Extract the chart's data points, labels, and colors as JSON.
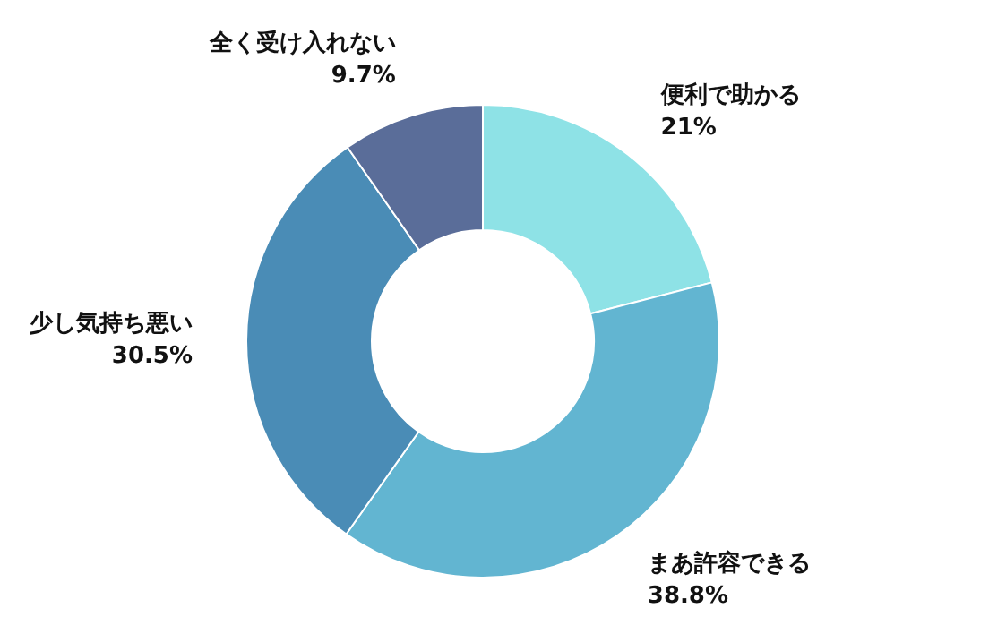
{
  "chart_data": {
    "type": "donut",
    "categories": [
      "便利で助かる",
      "まあ許容できる",
      "少し気持ち悪い",
      "全く受け入れない"
    ],
    "values": [
      21,
      38.8,
      30.5,
      9.7
    ],
    "colors": [
      "#8ee2e6",
      "#62b5d1",
      "#4a8cb6",
      "#5a6d99"
    ],
    "value_labels": [
      "21%",
      "38.8%",
      "30.5%",
      "9.7%"
    ],
    "legend": false
  }
}
